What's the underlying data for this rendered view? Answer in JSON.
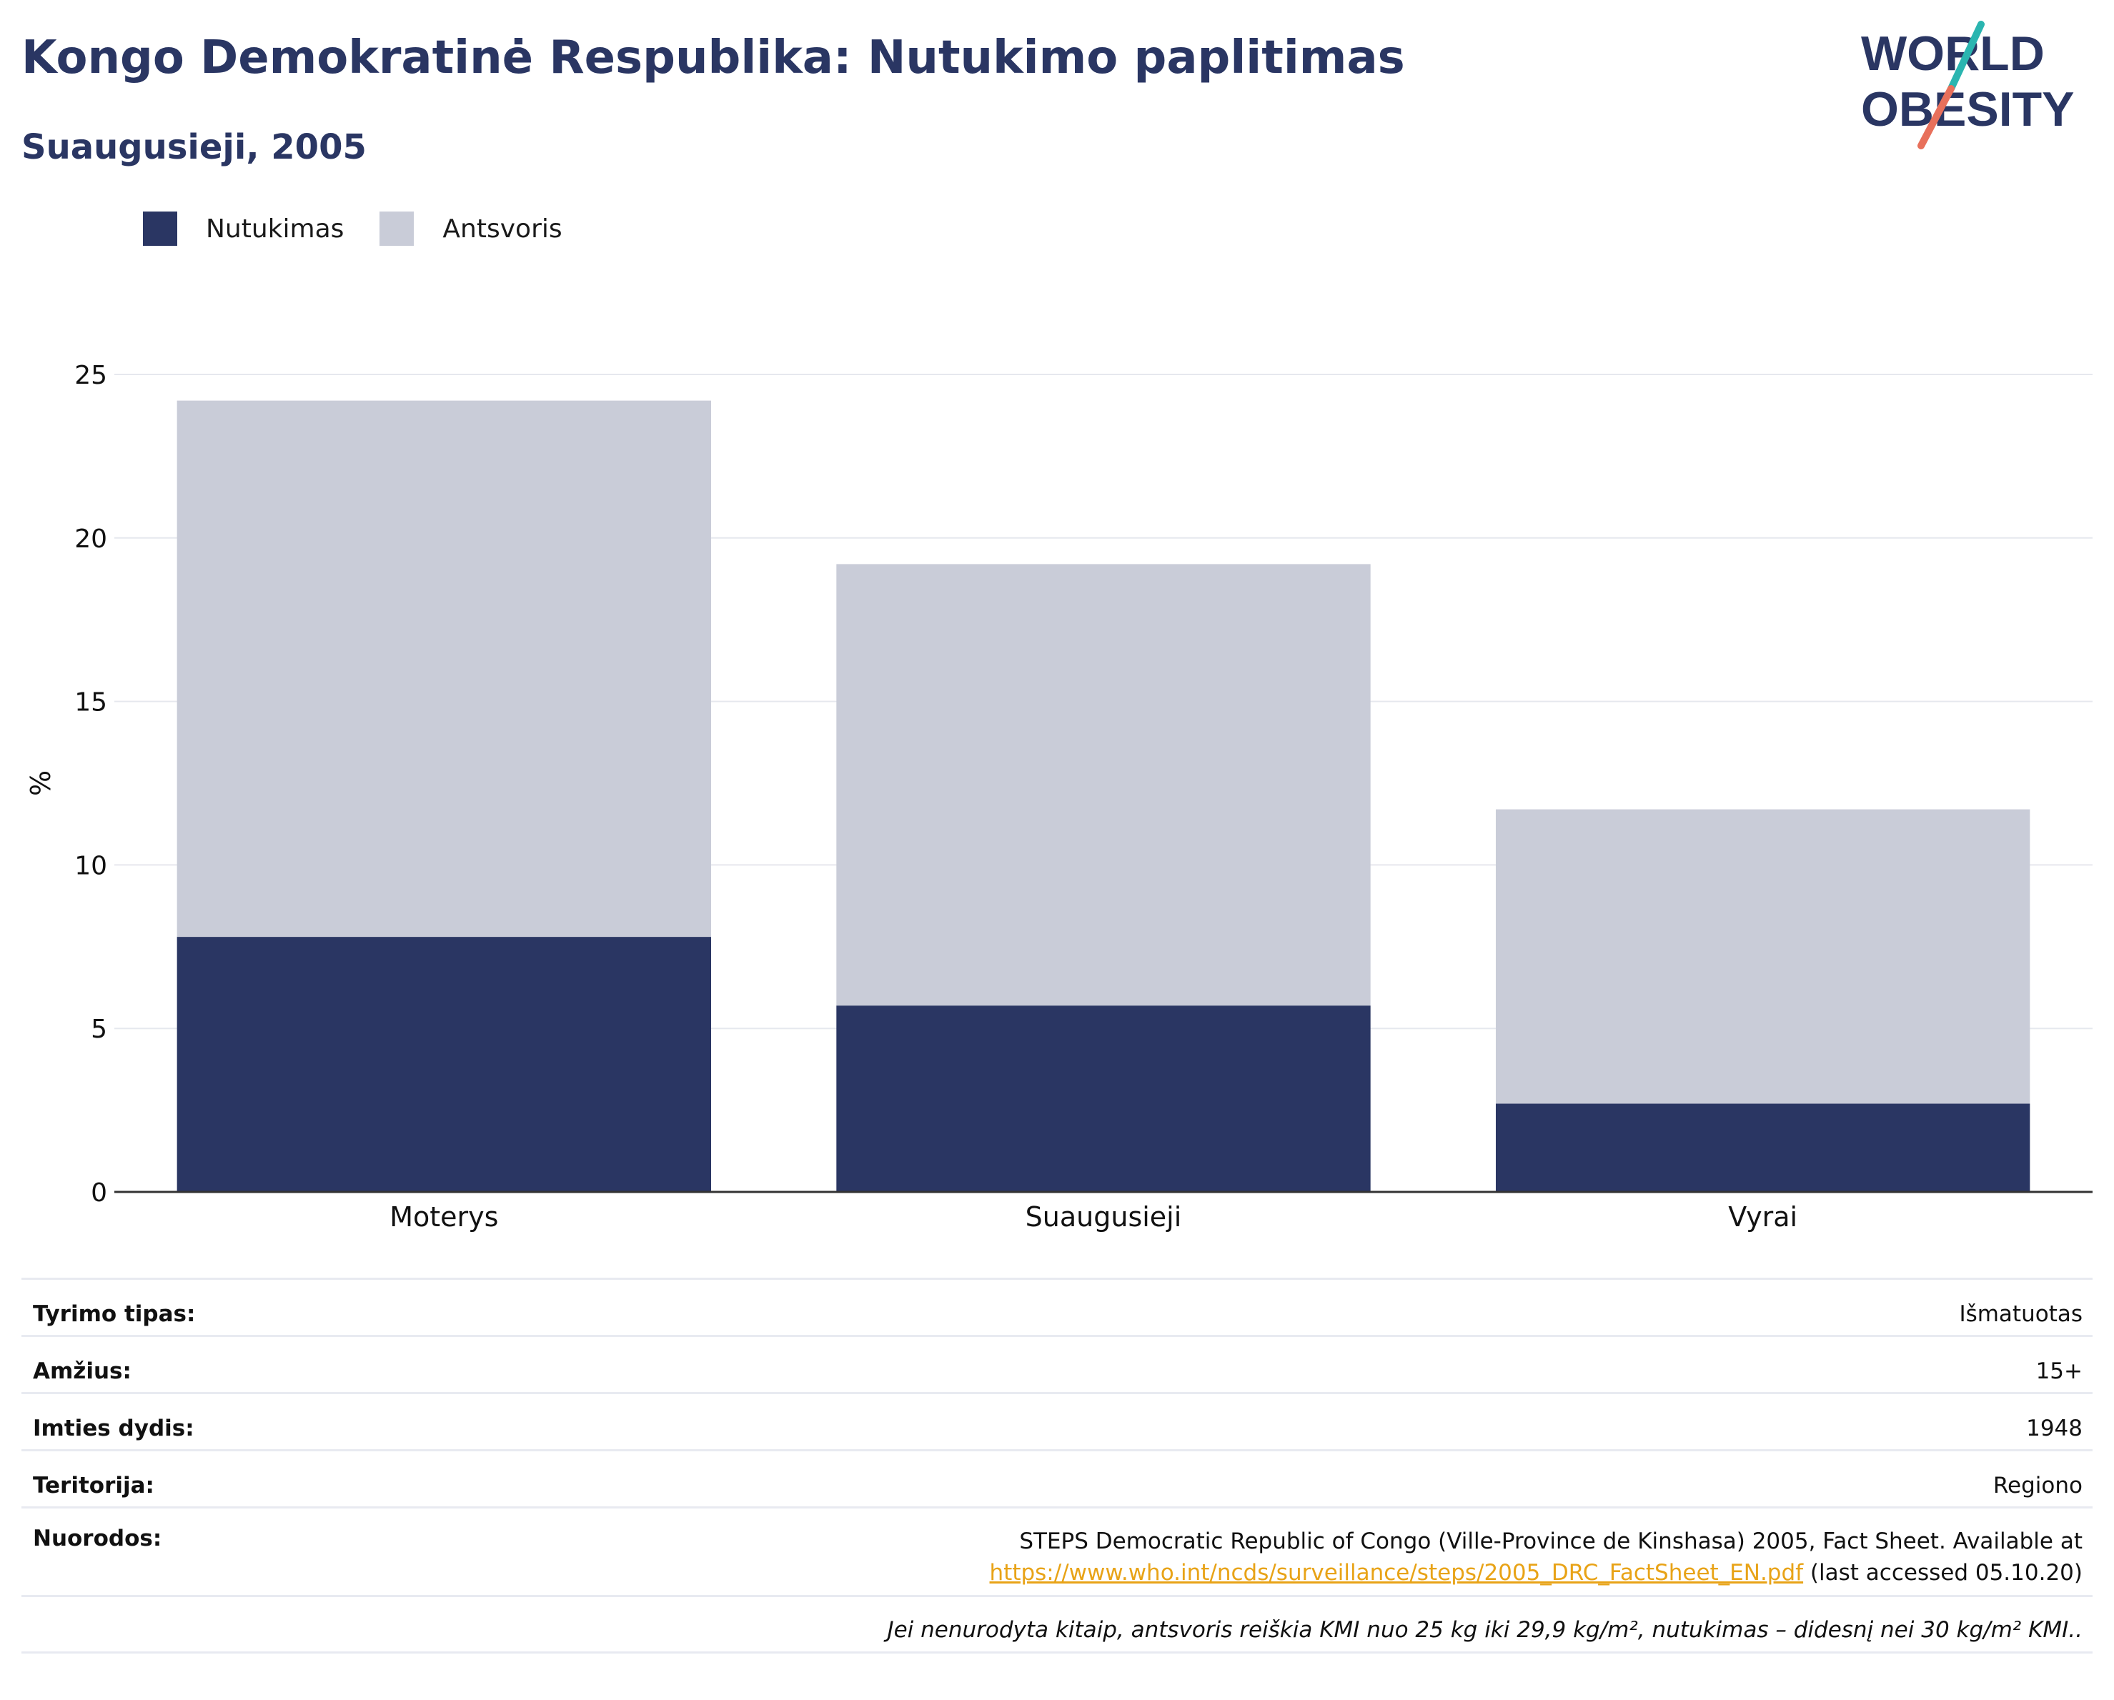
{
  "header": {
    "title": "Kongo Demokratinė Respublika: Nutukimo paplitimas",
    "subtitle": "Suaugusieji, 2005"
  },
  "logo": {
    "line1": "WORLD",
    "line2": "OBESITY"
  },
  "colors": {
    "obesity": "#2a3663",
    "overweight": "#c9ccd8",
    "title": "#2a3663",
    "link": "#e8a317",
    "grid": "#e6e8ee",
    "logo_teal": "#2ab5b0",
    "logo_coral": "#e8705b"
  },
  "legend": [
    {
      "label": "Nutukimas",
      "color": "#2a3663"
    },
    {
      "label": "Antsvoris",
      "color": "#c9ccd8"
    }
  ],
  "chart_data": {
    "type": "bar",
    "stacked": true,
    "categories": [
      "Moterys",
      "Suaugusieji",
      "Vyrai"
    ],
    "series": [
      {
        "name": "Nutukimas",
        "values": [
          7.8,
          5.7,
          2.7
        ]
      },
      {
        "name": "Antsvoris",
        "values": [
          16.4,
          13.5,
          9.0
        ]
      }
    ],
    "ylabel": "%",
    "ylim": [
      0,
      25
    ],
    "yticks": [
      0,
      5,
      10,
      15,
      20,
      25
    ],
    "grid": true,
    "legend_position": "top-left"
  },
  "info": {
    "survey_type": {
      "label": "Tyrimo tipas:",
      "value": "Išmatuotas"
    },
    "age": {
      "label": "Amžius:",
      "value": "15+"
    },
    "sample": {
      "label": "Imties dydis:",
      "value": "1948"
    },
    "territory": {
      "label": "Teritorija:",
      "value": "Regiono"
    },
    "references": {
      "label": "Nuorodos:",
      "line1": "STEPS Democratic Republic of Congo (Ville-Province de Kinshasa) 2005, Fact Sheet. Available at",
      "link": "https://www.who.int/ncds/surveillance/steps/2005_DRC_FactSheet_EN.pdf",
      "suffix": " (last accessed 05.10.20)"
    },
    "note": "Jei nenurodyta kitaip, antsvoris reiškia KMI nuo 25 kg iki 29,9 kg/m², nutukimas – didesnį nei 30 kg/m² KMI.."
  }
}
